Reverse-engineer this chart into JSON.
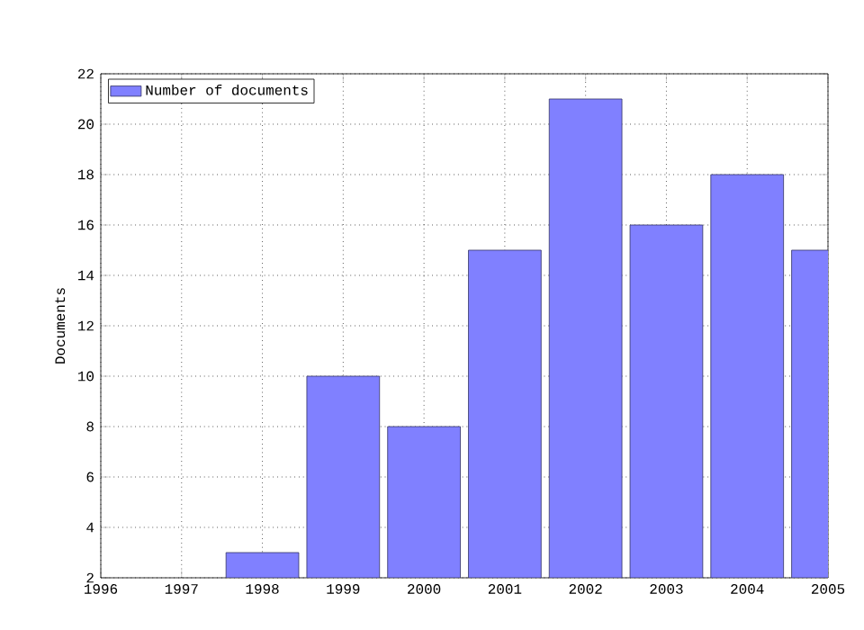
{
  "chart_data": {
    "type": "bar",
    "ylabel": "Documents",
    "x": [
      1998,
      1999,
      2000,
      2001,
      2002,
      2003,
      2004,
      2005
    ],
    "series": [
      {
        "name": "Number of documents",
        "color": "#8080ff",
        "values": [
          3,
          10,
          8,
          15,
          21,
          16,
          18,
          15
        ]
      }
    ],
    "xlim": [
      1996,
      2005
    ],
    "xticks": [
      1996,
      1997,
      1998,
      1999,
      2000,
      2001,
      2002,
      2003,
      2004,
      2005
    ],
    "ylim": [
      2,
      22
    ],
    "yticks": [
      2,
      4,
      6,
      8,
      10,
      12,
      14,
      16,
      18,
      20,
      22
    ],
    "grid": true,
    "legend": "top left"
  }
}
